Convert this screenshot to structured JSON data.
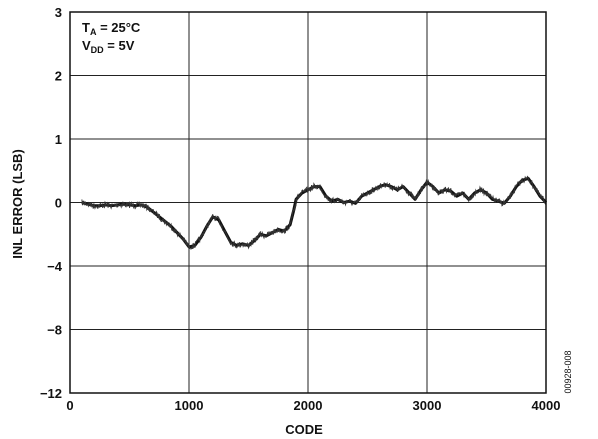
{
  "chart_data": {
    "type": "line",
    "title": "",
    "xlabel": "CODE",
    "ylabel": "INL ERROR (LSB)",
    "xlim": [
      0,
      4000
    ],
    "x_ticks": [
      "0",
      "1000",
      "2000",
      "3000",
      "4000"
    ],
    "y_ticks": [
      "3",
      "2",
      "1",
      "0",
      "−4",
      "−8",
      "−12"
    ],
    "grid": true,
    "annotations": {
      "ta_main": "T",
      "ta_sub": "A",
      "ta_rest": " = 25°C",
      "vdd_main": "V",
      "vdd_sub": "DD",
      "vdd_rest": " = 5V"
    },
    "figure_code": "00928-008",
    "series": [
      {
        "x": [
          100,
          150,
          200,
          250,
          300,
          350,
          400,
          450,
          500,
          550,
          600,
          650,
          700,
          750,
          800,
          850,
          900,
          950,
          1000,
          1050,
          1100,
          1150,
          1200,
          1250,
          1300,
          1350,
          1400,
          1450,
          1500,
          1550,
          1600,
          1650,
          1700,
          1750,
          1800,
          1850,
          1880,
          1900,
          1950,
          2000,
          2050,
          2100,
          2150,
          2200,
          2250,
          2300,
          2350,
          2400,
          2450,
          2500,
          2550,
          2600,
          2650,
          2700,
          2750,
          2800,
          2850,
          2900,
          2950,
          3000,
          3050,
          3100,
          3150,
          3200,
          3250,
          3300,
          3350,
          3400,
          3450,
          3500,
          3550,
          3600,
          3650,
          3700,
          3750,
          3800,
          3850,
          3900,
          3950,
          4000
        ],
        "y": [
          0.0,
          -0.1,
          -0.2,
          -0.2,
          -0.15,
          -0.2,
          -0.15,
          -0.1,
          -0.15,
          -0.2,
          -0.15,
          -0.3,
          -0.6,
          -0.9,
          -1.2,
          -1.5,
          -1.9,
          -2.3,
          -2.8,
          -2.7,
          -2.2,
          -1.5,
          -0.9,
          -1.1,
          -1.8,
          -2.5,
          -2.7,
          -2.6,
          -2.7,
          -2.4,
          -2.0,
          -2.1,
          -1.9,
          -1.7,
          -1.8,
          -1.4,
          -0.5,
          0.05,
          0.15,
          0.2,
          0.25,
          0.25,
          0.1,
          0.02,
          0.05,
          0.0,
          0.02,
          -0.05,
          0.1,
          0.15,
          0.2,
          0.25,
          0.28,
          0.25,
          0.2,
          0.25,
          0.15,
          0.05,
          0.2,
          0.32,
          0.25,
          0.15,
          0.2,
          0.18,
          0.1,
          0.15,
          0.05,
          0.15,
          0.2,
          0.15,
          0.05,
          0.02,
          -0.05,
          0.1,
          0.25,
          0.35,
          0.38,
          0.25,
          0.1,
          0.0
        ]
      }
    ]
  }
}
